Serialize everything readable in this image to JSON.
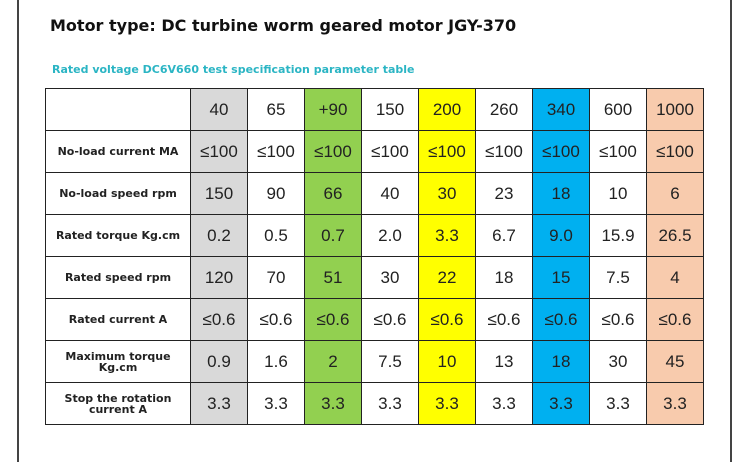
{
  "header": {
    "title": "Motor type: DC turbine worm geared motor JGY-370",
    "subtitle": "Rated voltage DC6V660 test specification parameter table"
  },
  "table": {
    "columns": [
      "40",
      "65",
      "+90",
      "150",
      "200",
      "260",
      "340",
      "600",
      "1000"
    ],
    "rows": [
      {
        "label": "No-load current MA",
        "cells": [
          "≤100",
          "≤100",
          "≤100",
          "≤100",
          "≤100",
          "≤100",
          "≤100",
          "≤100",
          "≤100"
        ]
      },
      {
        "label": "No-load speed rpm",
        "cells": [
          "150",
          "90",
          "66",
          "40",
          "30",
          "23",
          "18",
          "10",
          "6"
        ]
      },
      {
        "label": "Rated torque Kg.cm",
        "cells": [
          "0.2",
          "0.5",
          "0.7",
          "2.0",
          "3.3",
          "6.7",
          "9.0",
          "15.9",
          "26.5"
        ]
      },
      {
        "label": "Rated speed rpm",
        "cells": [
          "120",
          "70",
          "51",
          "30",
          "22",
          "18",
          "15",
          "7.5",
          "4"
        ]
      },
      {
        "label": "Rated current A",
        "cells": [
          "≤0.6",
          "≤0.6",
          "≤0.6",
          "≤0.6",
          "≤0.6",
          "≤0.6",
          "≤0.6",
          "≤0.6",
          "≤0.6"
        ]
      },
      {
        "label": "Maximum torque Kg.cm",
        "cells": [
          "0.9",
          "1.6",
          "2",
          "7.5",
          "10",
          "13",
          "18",
          "30",
          "45"
        ]
      },
      {
        "label": "Stop the rotation current A",
        "cells": [
          "3.3",
          "3.3",
          "3.3",
          "3.3",
          "3.3",
          "3.3",
          "3.3",
          "3.3",
          "3.3"
        ]
      }
    ]
  }
}
